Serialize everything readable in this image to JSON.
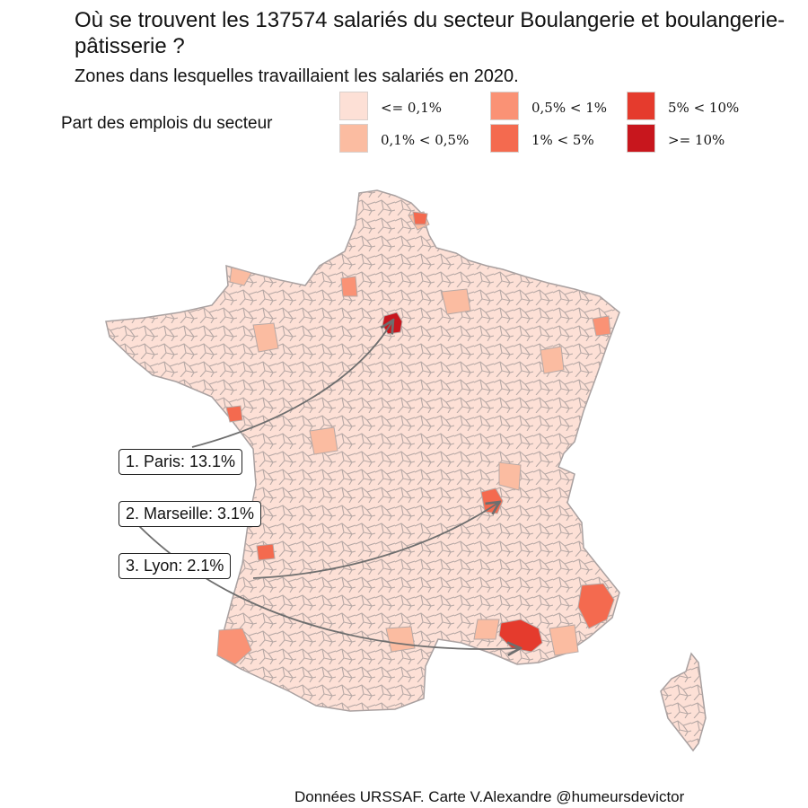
{
  "title": "Où se trouvent les 137574 salariés du secteur Boulangerie et boulangerie-pâtisserie ?",
  "subtitle": "Zones dans lesquelles travaillaient les salariés en 2020.",
  "legend": {
    "title": "Part des emplois du secteur",
    "items": [
      {
        "label": "<= 0,1%",
        "color": "#fde0d6"
      },
      {
        "label": "0,1% < 0,5%",
        "color": "#fbbca1"
      },
      {
        "label": "0,5% < 1%",
        "color": "#fa9275"
      },
      {
        "label": "1% < 5%",
        "color": "#f46a4f"
      },
      {
        "label": "5% < 10%",
        "color": "#e53b2d"
      },
      {
        "label": ">= 10%",
        "color": "#c8161d"
      }
    ]
  },
  "callouts": [
    {
      "label": "1. Paris: 13.1%",
      "city": "Paris",
      "share_pct": 13.1
    },
    {
      "label": "2. Marseille: 3.1%",
      "city": "Marseille",
      "share_pct": 3.1
    },
    {
      "label": "3. Lyon: 2.1%",
      "city": "Lyon",
      "share_pct": 2.1
    }
  ],
  "colors": {
    "border": "#b7a9a6",
    "arrow": "#6e6e6e"
  },
  "caption": "Données URSSAF. Carte V.Alexandre @humeursdevictor"
}
